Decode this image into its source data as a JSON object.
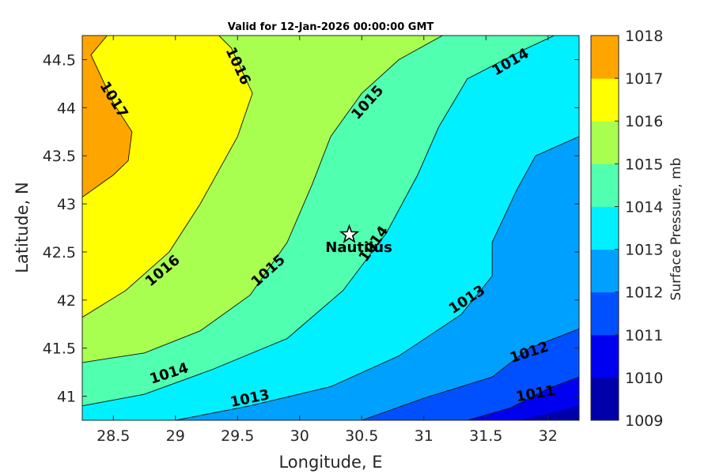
{
  "chart_data": {
    "type": "contour",
    "title": "Valid for 12-Jan-2026 00:00:00 GMT",
    "xlabel": "Longitude, E",
    "ylabel": "Latitude, N",
    "xlim": [
      28.25,
      32.25
    ],
    "ylim": [
      40.75,
      44.75
    ],
    "xticks": [
      "28.5",
      "29",
      "29.5",
      "30",
      "30.5",
      "31",
      "31.5",
      "32"
    ],
    "xtick_values": [
      28.5,
      29,
      29.5,
      30,
      30.5,
      31,
      31.5,
      32
    ],
    "yticks": [
      "41",
      "41.5",
      "42",
      "42.5",
      "43",
      "43.5",
      "44",
      "44.5"
    ],
    "ytick_values": [
      41,
      41.5,
      42,
      42.5,
      43,
      43.5,
      44,
      44.5
    ],
    "colorbar": {
      "label": "Surface Pressure, mb",
      "levels": [
        1009,
        1010,
        1011,
        1012,
        1013,
        1014,
        1015,
        1016,
        1017,
        1018
      ],
      "level_labels": [
        "1009",
        "1010",
        "1011",
        "1012",
        "1013",
        "1014",
        "1015",
        "1016",
        "1017",
        "1018"
      ],
      "colors": [
        "#0000aa",
        "#0000f0",
        "#0050ff",
        "#00a0ff",
        "#00f0ff",
        "#50ffb0",
        "#a8ff50",
        "#ffff00",
        "#ffa500",
        "#ff5000"
      ]
    },
    "contour_levels": [
      1011,
      1012,
      1013,
      1014,
      1015,
      1016,
      1017
    ],
    "contours": [
      {
        "level": 1017,
        "points": [
          [
            28.25,
            43.07
          ],
          [
            28.5,
            43.3
          ],
          [
            28.62,
            43.45
          ],
          [
            28.65,
            43.75
          ],
          [
            28.5,
            44.05
          ],
          [
            28.32,
            44.55
          ],
          [
            28.45,
            44.75
          ]
        ]
      },
      {
        "level": 1016,
        "points": [
          [
            28.25,
            41.82
          ],
          [
            28.6,
            42.1
          ],
          [
            28.95,
            42.5
          ],
          [
            29.2,
            43.0
          ],
          [
            29.5,
            43.7
          ],
          [
            29.62,
            44.15
          ],
          [
            29.45,
            44.62
          ],
          [
            29.35,
            44.75
          ]
        ]
      },
      {
        "level": 1015,
        "points": [
          [
            28.25,
            41.35
          ],
          [
            28.75,
            41.45
          ],
          [
            29.2,
            41.68
          ],
          [
            29.6,
            42.05
          ],
          [
            29.9,
            42.6
          ],
          [
            30.1,
            43.2
          ],
          [
            30.25,
            43.7
          ],
          [
            30.5,
            44.15
          ],
          [
            30.8,
            44.5
          ],
          [
            31.15,
            44.75
          ]
        ]
      },
      {
        "level": 1014,
        "points": [
          [
            28.25,
            40.9
          ],
          [
            28.75,
            41.02
          ],
          [
            29.3,
            41.28
          ],
          [
            29.9,
            41.6
          ],
          [
            30.35,
            42.1
          ],
          [
            30.7,
            42.7
          ],
          [
            30.95,
            43.3
          ],
          [
            31.12,
            43.8
          ],
          [
            31.35,
            44.3
          ],
          [
            31.8,
            44.6
          ],
          [
            32.05,
            44.75
          ]
        ]
      },
      {
        "level": 1013,
        "points": [
          [
            29.0,
            40.75
          ],
          [
            29.6,
            40.9
          ],
          [
            30.25,
            41.1
          ],
          [
            30.8,
            41.42
          ],
          [
            31.3,
            41.85
          ],
          [
            31.55,
            42.25
          ],
          [
            31.55,
            42.6
          ],
          [
            31.75,
            43.15
          ],
          [
            31.9,
            43.5
          ],
          [
            32.25,
            43.7
          ]
        ]
      },
      {
        "level": 1012,
        "points": [
          [
            30.5,
            40.75
          ],
          [
            31.0,
            40.98
          ],
          [
            31.55,
            41.2
          ],
          [
            31.85,
            41.5
          ],
          [
            32.25,
            41.7
          ]
        ]
      },
      {
        "level": 1011,
        "points": [
          [
            31.35,
            40.75
          ],
          [
            31.7,
            40.88
          ],
          [
            32.0,
            41.08
          ],
          [
            32.25,
            41.2
          ]
        ]
      }
    ],
    "contour_labels": [
      {
        "text": "1017",
        "x": 28.5,
        "y": 44.08,
        "angle": 58
      },
      {
        "text": "1016",
        "x": 29.5,
        "y": 44.43,
        "angle": 65
      },
      {
        "text": "1016",
        "x": 28.9,
        "y": 42.3,
        "angle": -40
      },
      {
        "text": "1015",
        "x": 30.55,
        "y": 44.05,
        "angle": -48
      },
      {
        "text": "1015",
        "x": 29.75,
        "y": 42.3,
        "angle": -42
      },
      {
        "text": "1014",
        "x": 31.7,
        "y": 44.47,
        "angle": -30
      },
      {
        "text": "1014",
        "x": 28.95,
        "y": 41.23,
        "angle": -18
      },
      {
        "text": "1014",
        "x": 30.6,
        "y": 42.58,
        "angle": -55
      },
      {
        "text": "1013",
        "x": 29.6,
        "y": 40.97,
        "angle": -12
      },
      {
        "text": "1013",
        "x": 31.35,
        "y": 42.0,
        "angle": -33
      },
      {
        "text": "1012",
        "x": 31.85,
        "y": 41.45,
        "angle": -18
      },
      {
        "text": "1011",
        "x": 31.9,
        "y": 41.02,
        "angle": -10
      }
    ],
    "markers": [
      {
        "label": "Nautilus",
        "x": 30.4,
        "y": 42.68,
        "symbol": "star"
      }
    ],
    "field_zones": [
      {
        "level": 1017,
        "color": "#ffa500",
        "points": [
          [
            28.25,
            43.07
          ],
          [
            28.5,
            43.3
          ],
          [
            28.62,
            43.45
          ],
          [
            28.65,
            43.75
          ],
          [
            28.5,
            44.05
          ],
          [
            28.32,
            44.55
          ],
          [
            28.45,
            44.75
          ],
          [
            28.25,
            44.75
          ]
        ]
      }
    ]
  }
}
